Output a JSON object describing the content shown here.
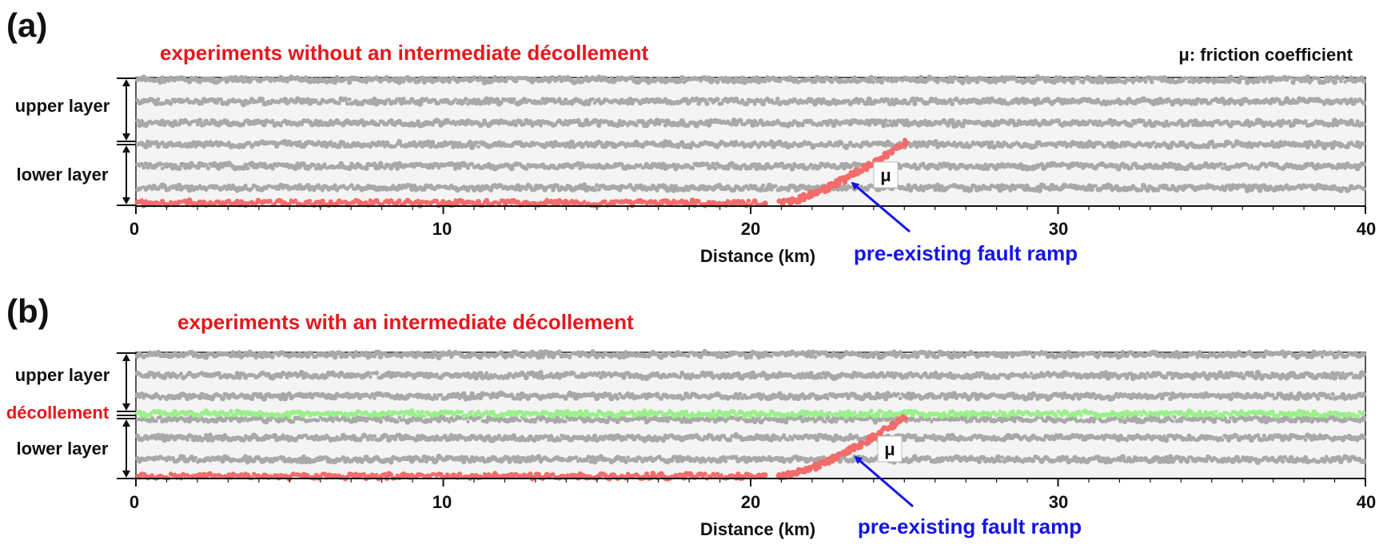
{
  "panels": [
    {
      "label": "(a)",
      "title": "experiments without an intermediate décollement",
      "legend_note": "μ: friction coefficient",
      "upper_layer": "upper layer",
      "lower_layer": "lower layer",
      "decollement": null,
      "x_ticks": [
        "0",
        "10",
        "20",
        "30",
        "40"
      ],
      "x_axis_title": "Distance (km)",
      "fault_label": "pre-existing fault ramp",
      "mu_label": "μ"
    },
    {
      "label": "(b)",
      "title": "experiments with an intermediate décollement",
      "legend_note": null,
      "upper_layer": "upper layer",
      "lower_layer": "lower layer",
      "decollement": "décollement",
      "x_ticks": [
        "0",
        "10",
        "20",
        "30",
        "40"
      ],
      "x_axis_title": "Distance (km)",
      "fault_label": "pre-existing fault ramp",
      "mu_label": "μ"
    }
  ],
  "model": {
    "x_range_km": [
      0,
      40
    ],
    "fault_ramp_km": [
      21,
      25
    ],
    "basal_red_extent_km": [
      0,
      20.5
    ]
  },
  "colors": {
    "particle_gray": "#a9a9a9",
    "fault_red": "#f36b6b",
    "decollement_green": "#9af08a",
    "arrow_blue": "#1414e6",
    "title_red": "#e8161b",
    "box_fill": "#f4f4f4"
  }
}
